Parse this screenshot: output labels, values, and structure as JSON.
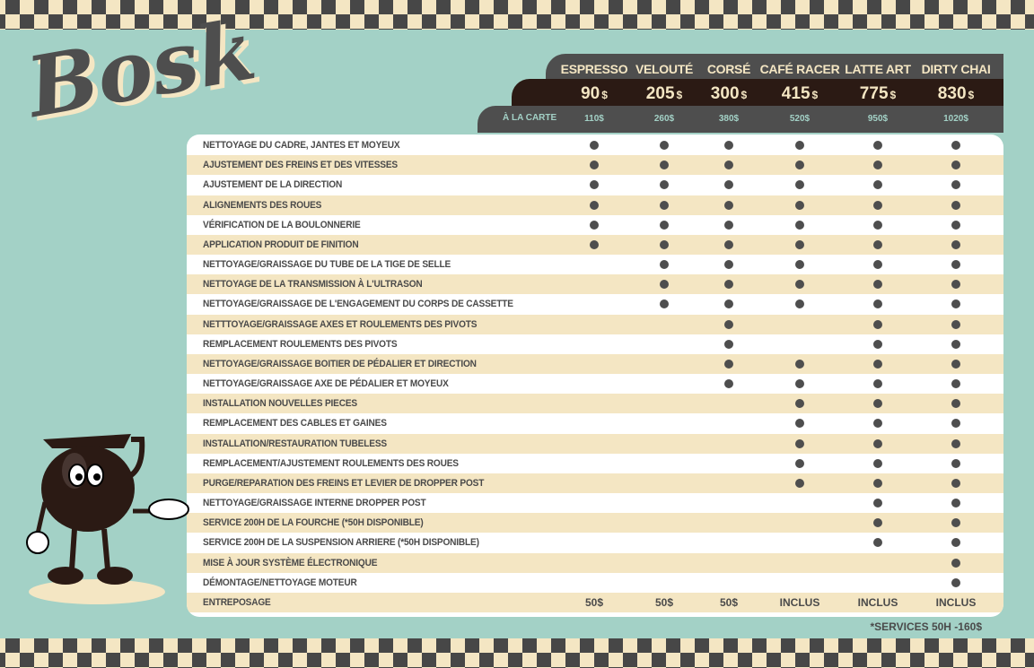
{
  "brand": {
    "logo_text": "Bosk"
  },
  "colors": {
    "background": "#a3d1c6",
    "dark": "#4e4e4e",
    "brown": "#2b1a14",
    "cream": "#f4e6c3"
  },
  "packages": [
    {
      "name": "ESPRESSO",
      "price": "90",
      "alacarte": "110$"
    },
    {
      "name": "VELOUTÉ",
      "price": "205",
      "alacarte": "260$"
    },
    {
      "name": "CORSÉ",
      "price": "300",
      "alacarte": "380$"
    },
    {
      "name": "CAFÉ RACER",
      "price": "415",
      "alacarte": "520$"
    },
    {
      "name": "LATTE ART",
      "price": "775",
      "alacarte": "950$"
    },
    {
      "name": "DIRTY CHAI",
      "price": "830",
      "alacarte": "1020$"
    }
  ],
  "currency": "$",
  "alacarte_label": "À LA CARTE",
  "services": [
    {
      "label": "NETTOYAGE DU CADRE, JANTES ET MOYEUX",
      "inc": [
        1,
        1,
        1,
        1,
        1,
        1
      ]
    },
    {
      "label": "AJUSTEMENT DES FREINS ET DES VITESSES",
      "inc": [
        1,
        1,
        1,
        1,
        1,
        1
      ]
    },
    {
      "label": "AJUSTEMENT DE LA DIRECTION",
      "inc": [
        1,
        1,
        1,
        1,
        1,
        1
      ]
    },
    {
      "label": "ALIGNEMENTS DES ROUES",
      "inc": [
        1,
        1,
        1,
        1,
        1,
        1
      ]
    },
    {
      "label": "VÉRIFICATION DE LA BOULONNERIE",
      "inc": [
        1,
        1,
        1,
        1,
        1,
        1
      ]
    },
    {
      "label": "APPLICATION PRODUIT DE FINITION",
      "inc": [
        1,
        1,
        1,
        1,
        1,
        1
      ]
    },
    {
      "label": "NETTOYAGE/GRAISSAGE DU TUBE DE LA TIGE DE SELLE",
      "inc": [
        0,
        1,
        1,
        1,
        1,
        1
      ]
    },
    {
      "label": "NETTOYAGE DE LA TRANSMISSION À L'ULTRASON",
      "inc": [
        0,
        1,
        1,
        1,
        1,
        1
      ]
    },
    {
      "label": "NETTOYAGE/GRAISSAGE DE L'ENGAGEMENT DU CORPS DE CASSETTE",
      "inc": [
        0,
        1,
        1,
        1,
        1,
        1
      ]
    },
    {
      "label": "NETTTOYAGE/GRAISSAGE AXES ET ROULEMENTS DES PIVOTS",
      "inc": [
        0,
        0,
        1,
        0,
        1,
        1
      ]
    },
    {
      "label": "REMPLACEMENT ROULEMENTS DES PIVOTS",
      "inc": [
        0,
        0,
        1,
        0,
        1,
        1
      ]
    },
    {
      "label": "NETTOYAGE/GRAISSAGE BOITIER DE PÉDALIER ET DIRECTION",
      "inc": [
        0,
        0,
        1,
        1,
        1,
        1
      ]
    },
    {
      "label": "NETTOYAGE/GRAISSAGE AXE DE PÉDALIER ET MOYEUX",
      "inc": [
        0,
        0,
        1,
        1,
        1,
        1
      ]
    },
    {
      "label": "INSTALLATION NOUVELLES PIECES",
      "inc": [
        0,
        0,
        0,
        1,
        1,
        1
      ]
    },
    {
      "label": "REMPLACEMENT DES CABLES ET GAINES",
      "inc": [
        0,
        0,
        0,
        1,
        1,
        1
      ]
    },
    {
      "label": "INSTALLATION/RESTAURATION TUBELESS",
      "inc": [
        0,
        0,
        0,
        1,
        1,
        1
      ]
    },
    {
      "label": "REMPLACEMENT/AJUSTEMENT ROULEMENTS DES ROUES",
      "inc": [
        0,
        0,
        0,
        1,
        1,
        1
      ]
    },
    {
      "label": "PURGE/REPARATION DES FREINS ET LEVIER DE DROPPER POST",
      "inc": [
        0,
        0,
        0,
        1,
        1,
        1
      ]
    },
    {
      "label": "NETTOYAGE/GRAISSAGE INTERNE DROPPER POST",
      "inc": [
        0,
        0,
        0,
        0,
        1,
        1
      ]
    },
    {
      "label": "SERVICE 200H DE LA FOURCHE (*50H DISPONIBLE)",
      "inc": [
        0,
        0,
        0,
        0,
        1,
        1
      ]
    },
    {
      "label": "SERVICE 200H DE LA SUSPENSION ARRIERE (*50H DISPONIBLE)",
      "inc": [
        0,
        0,
        0,
        0,
        1,
        1
      ]
    },
    {
      "label": "MISE À JOUR SYSTÈME ÉLECTRONIQUE",
      "inc": [
        0,
        0,
        0,
        0,
        0,
        1
      ]
    },
    {
      "label": "DÉMONTAGE/NETTOYAGE MOTEUR",
      "inc": [
        0,
        0,
        0,
        0,
        0,
        1
      ]
    },
    {
      "label": "ENTREPOSAGE",
      "values": [
        "50$",
        "50$",
        "50$",
        "INCLUS",
        "INCLUS",
        "INCLUS"
      ]
    }
  ],
  "footnote": "*SERVICES 50H -160$"
}
